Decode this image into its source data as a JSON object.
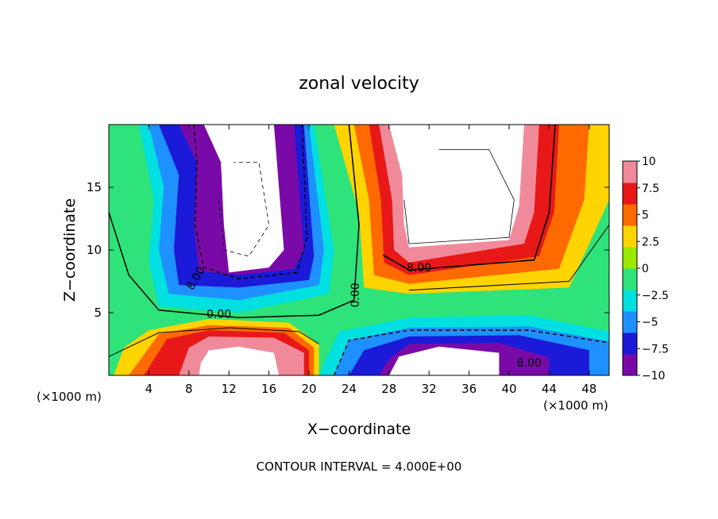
{
  "chart_data": {
    "type": "heatmap",
    "title": "zonal velocity",
    "xlabel": "X−coordinate",
    "ylabel": "Z−coordinate",
    "x_unit_left": "(×1000 m)",
    "x_unit_right": "(×1000 m)",
    "xlim": [
      0,
      50
    ],
    "ylim": [
      0,
      20
    ],
    "xticks": [
      4,
      8,
      12,
      16,
      20,
      24,
      28,
      32,
      36,
      40,
      44,
      48
    ],
    "yticks": [
      5,
      10,
      15
    ],
    "colorbar": {
      "ticks": [
        10,
        7.5,
        5,
        2.5,
        0,
        -2.5,
        -5,
        -7.5,
        -10
      ],
      "tick_labels": [
        "10",
        "7.5",
        "5",
        "2.5",
        "0",
        "−2.5",
        "−5",
        "−7.5",
        "−10"
      ],
      "range": [
        -10,
        10
      ],
      "colors": [
        "#7a0aa8",
        "#1a1ad8",
        "#1e90ff",
        "#00e0e0",
        "#2ee37a",
        "#9be800",
        "#ffd400",
        "#ff6a00",
        "#e81818",
        "#f08a9a"
      ],
      "saturated_above_max_color": "#ffffff"
    },
    "contour_labels": [
      "8.00",
      "8.00",
      "0.00",
      "0.00",
      "8.00"
    ],
    "footer": "CONTOUR INTERVAL = 4.000E+00",
    "grid": false
  }
}
